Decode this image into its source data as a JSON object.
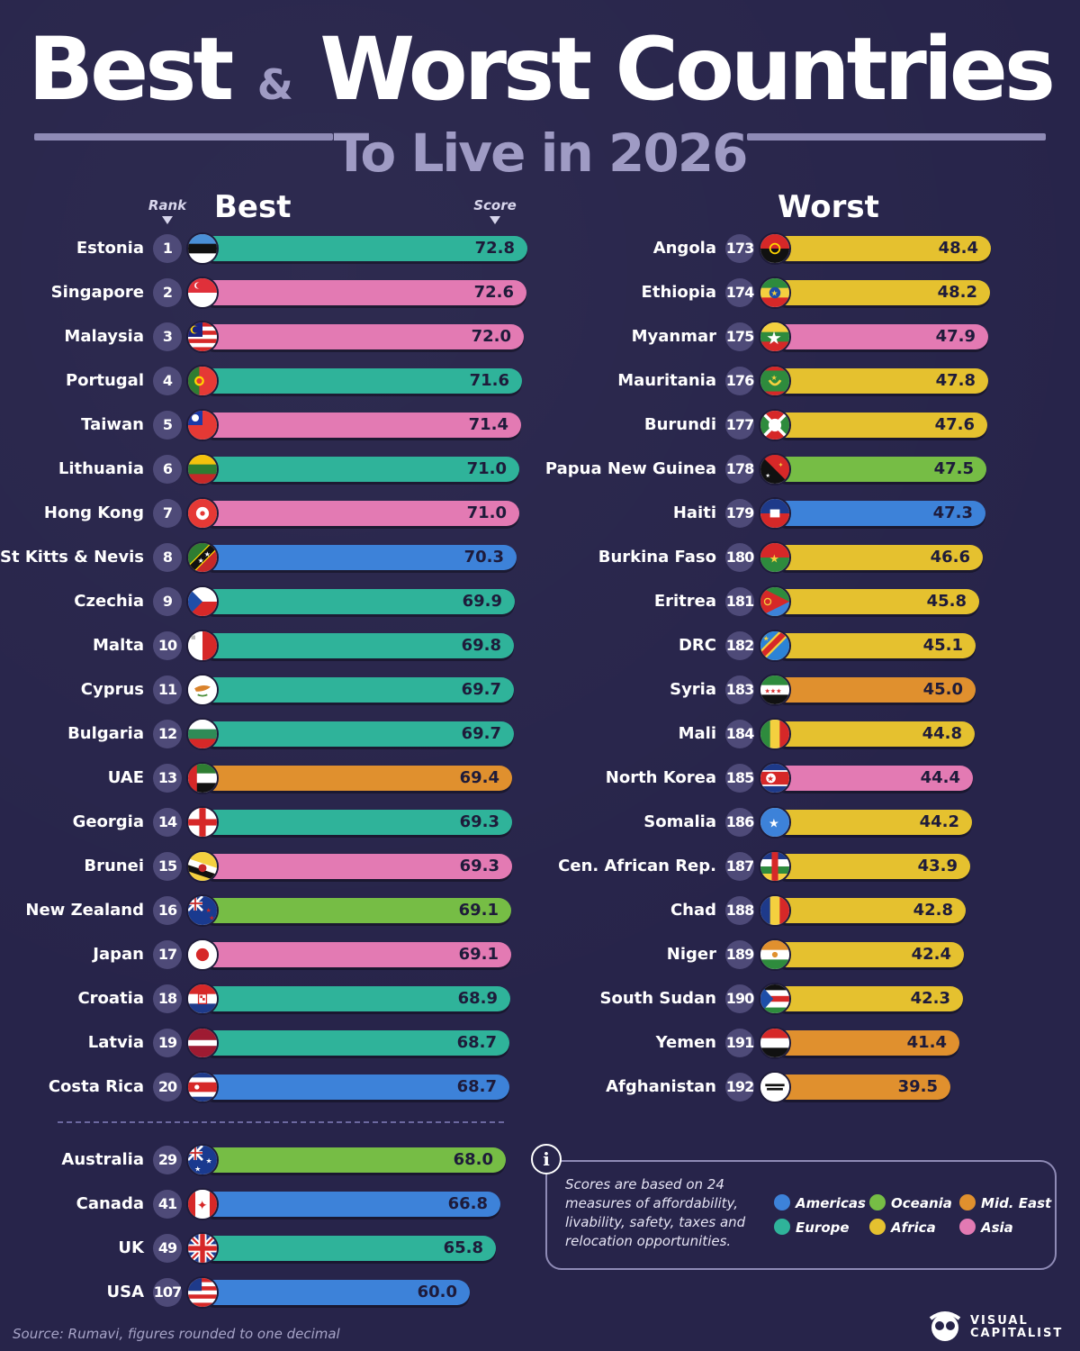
{
  "title": {
    "part1": "Best",
    "amp": "&",
    "part2": "Worst Countries",
    "subtitle": "To Live in 2026"
  },
  "headers": {
    "rank": "Rank",
    "best": "Best",
    "score": "Score",
    "worst": "Worst"
  },
  "colors": {
    "Americas": "#3d82d9",
    "Oceania": "#76bd45",
    "Mid. East": "#e0902e",
    "Europe": "#2fb39a",
    "Africa": "#e5c12f",
    "Asia": "#e37ab3",
    "background": "#27244a",
    "rank_circle": "#4e4a78"
  },
  "chart_data": [
    {
      "type": "bar",
      "title": "Best",
      "xlim": [
        0,
        72.8
      ],
      "rows": [
        {
          "country": "Estonia",
          "rank": "1",
          "score": 72.8,
          "score_label": "72.8",
          "region": "Europe",
          "flag": "estonia-flag"
        },
        {
          "country": "Singapore",
          "rank": "2",
          "score": 72.6,
          "score_label": "72.6",
          "region": "Asia",
          "flag": "singapore-flag"
        },
        {
          "country": "Malaysia",
          "rank": "3",
          "score": 72.0,
          "score_label": "72.0",
          "region": "Asia",
          "flag": "malaysia-flag"
        },
        {
          "country": "Portugal",
          "rank": "4",
          "score": 71.6,
          "score_label": "71.6",
          "region": "Europe",
          "flag": "portugal-flag"
        },
        {
          "country": "Taiwan",
          "rank": "5",
          "score": 71.4,
          "score_label": "71.4",
          "region": "Asia",
          "flag": "taiwan-flag"
        },
        {
          "country": "Lithuania",
          "rank": "6",
          "score": 71.0,
          "score_label": "71.0",
          "region": "Europe",
          "flag": "lithuania-flag"
        },
        {
          "country": "Hong Kong",
          "rank": "7",
          "score": 71.0,
          "score_label": "71.0",
          "region": "Asia",
          "flag": "hong-kong-flag"
        },
        {
          "country": "St Kitts & Nevis",
          "rank": "8",
          "score": 70.3,
          "score_label": "70.3",
          "region": "Americas",
          "flag": "st-kitts-nevis-flag"
        },
        {
          "country": "Czechia",
          "rank": "9",
          "score": 69.9,
          "score_label": "69.9",
          "region": "Europe",
          "flag": "czechia-flag"
        },
        {
          "country": "Malta",
          "rank": "10",
          "score": 69.8,
          "score_label": "69.8",
          "region": "Europe",
          "flag": "malta-flag"
        },
        {
          "country": "Cyprus",
          "rank": "11",
          "score": 69.7,
          "score_label": "69.7",
          "region": "Europe",
          "flag": "cyprus-flag"
        },
        {
          "country": "Bulgaria",
          "rank": "12",
          "score": 69.7,
          "score_label": "69.7",
          "region": "Europe",
          "flag": "bulgaria-flag"
        },
        {
          "country": "UAE",
          "rank": "13",
          "score": 69.4,
          "score_label": "69.4",
          "region": "Mid. East",
          "flag": "uae-flag"
        },
        {
          "country": "Georgia",
          "rank": "14",
          "score": 69.3,
          "score_label": "69.3",
          "region": "Europe",
          "flag": "georgia-flag"
        },
        {
          "country": "Brunei",
          "rank": "15",
          "score": 69.3,
          "score_label": "69.3",
          "region": "Asia",
          "flag": "brunei-flag"
        },
        {
          "country": "New Zealand",
          "rank": "16",
          "score": 69.1,
          "score_label": "69.1",
          "region": "Oceania",
          "flag": "new-zealand-flag"
        },
        {
          "country": "Japan",
          "rank": "17",
          "score": 69.1,
          "score_label": "69.1",
          "region": "Asia",
          "flag": "japan-flag"
        },
        {
          "country": "Croatia",
          "rank": "18",
          "score": 68.9,
          "score_label": "68.9",
          "region": "Europe",
          "flag": "croatia-flag"
        },
        {
          "country": "Latvia",
          "rank": "19",
          "score": 68.7,
          "score_label": "68.7",
          "region": "Europe",
          "flag": "latvia-flag"
        },
        {
          "country": "Costa Rica",
          "rank": "20",
          "score": 68.7,
          "score_label": "68.7",
          "region": "Americas",
          "flag": "costa-rica-flag"
        },
        {
          "country": "Australia",
          "rank": "29",
          "score": 68.0,
          "score_label": "68.0",
          "region": "Oceania",
          "flag": "australia-flag"
        },
        {
          "country": "Canada",
          "rank": "41",
          "score": 66.8,
          "score_label": "66.8",
          "region": "Americas",
          "flag": "canada-flag"
        },
        {
          "country": "UK",
          "rank": "49",
          "score": 65.8,
          "score_label": "65.8",
          "region": "Europe",
          "flag": "uk-flag"
        },
        {
          "country": "USA",
          "rank": "107",
          "score": 60.0,
          "score_label": "60.0",
          "region": "Americas",
          "flag": "usa-flag"
        }
      ]
    },
    {
      "type": "bar",
      "title": "Worst",
      "xlim": [
        0,
        72.8
      ],
      "rows": [
        {
          "country": "Angola",
          "rank": "173",
          "score": 48.4,
          "score_label": "48.4",
          "region": "Africa",
          "flag": "angola-flag"
        },
        {
          "country": "Ethiopia",
          "rank": "174",
          "score": 48.2,
          "score_label": "48.2",
          "region": "Africa",
          "flag": "ethiopia-flag"
        },
        {
          "country": "Myanmar",
          "rank": "175",
          "score": 47.9,
          "score_label": "47.9",
          "region": "Asia",
          "flag": "myanmar-flag"
        },
        {
          "country": "Mauritania",
          "rank": "176",
          "score": 47.8,
          "score_label": "47.8",
          "region": "Africa",
          "flag": "mauritania-flag"
        },
        {
          "country": "Burundi",
          "rank": "177",
          "score": 47.6,
          "score_label": "47.6",
          "region": "Africa",
          "flag": "burundi-flag"
        },
        {
          "country": "Papua New Guinea",
          "rank": "178",
          "score": 47.5,
          "score_label": "47.5",
          "region": "Oceania",
          "flag": "papua-new-guinea-flag"
        },
        {
          "country": "Haiti",
          "rank": "179",
          "score": 47.3,
          "score_label": "47.3",
          "region": "Americas",
          "flag": "haiti-flag"
        },
        {
          "country": "Burkina Faso",
          "rank": "180",
          "score": 46.6,
          "score_label": "46.6",
          "region": "Africa",
          "flag": "burkina-faso-flag"
        },
        {
          "country": "Eritrea",
          "rank": "181",
          "score": 45.8,
          "score_label": "45.8",
          "region": "Africa",
          "flag": "eritrea-flag"
        },
        {
          "country": "DRC",
          "rank": "182",
          "score": 45.1,
          "score_label": "45.1",
          "region": "Africa",
          "flag": "drc-flag"
        },
        {
          "country": "Syria",
          "rank": "183",
          "score": 45.0,
          "score_label": "45.0",
          "region": "Mid. East",
          "flag": "syria-flag"
        },
        {
          "country": "Mali",
          "rank": "184",
          "score": 44.8,
          "score_label": "44.8",
          "region": "Africa",
          "flag": "mali-flag"
        },
        {
          "country": "North Korea",
          "rank": "185",
          "score": 44.4,
          "score_label": "44.4",
          "region": "Asia",
          "flag": "north-korea-flag"
        },
        {
          "country": "Somalia",
          "rank": "186",
          "score": 44.2,
          "score_label": "44.2",
          "region": "Africa",
          "flag": "somalia-flag"
        },
        {
          "country": "Cen. African Rep.",
          "rank": "187",
          "score": 43.9,
          "score_label": "43.9",
          "region": "Africa",
          "flag": "central-african-republic-flag"
        },
        {
          "country": "Chad",
          "rank": "188",
          "score": 42.8,
          "score_label": "42.8",
          "region": "Africa",
          "flag": "chad-flag"
        },
        {
          "country": "Niger",
          "rank": "189",
          "score": 42.4,
          "score_label": "42.4",
          "region": "Africa",
          "flag": "niger-flag"
        },
        {
          "country": "South Sudan",
          "rank": "190",
          "score": 42.3,
          "score_label": "42.3",
          "region": "Africa",
          "flag": "south-sudan-flag"
        },
        {
          "country": "Yemen",
          "rank": "191",
          "score": 41.4,
          "score_label": "41.4",
          "region": "Mid. East",
          "flag": "yemen-flag"
        },
        {
          "country": "Afghanistan",
          "rank": "192",
          "score": 39.5,
          "score_label": "39.5",
          "region": "Mid. East",
          "flag": "afghanistan-flag"
        }
      ]
    }
  ],
  "legend": {
    "items": [
      {
        "label": "Americas",
        "color": "#3d82d9"
      },
      {
        "label": "Oceania",
        "color": "#76bd45"
      },
      {
        "label": "Mid. East",
        "color": "#e0902e"
      },
      {
        "label": "Europe",
        "color": "#2fb39a"
      },
      {
        "label": "Africa",
        "color": "#e5c12f"
      },
      {
        "label": "Asia",
        "color": "#e37ab3"
      }
    ]
  },
  "info": {
    "icon": "info-icon",
    "text": "Scores are based on 24 measures of affordability, livability, safety, taxes and relocation opportunities."
  },
  "source": "Source: Rumavi, figures rounded to one decimal",
  "brand": {
    "line1": "VISUAL",
    "line2": "CAPITALIST"
  }
}
